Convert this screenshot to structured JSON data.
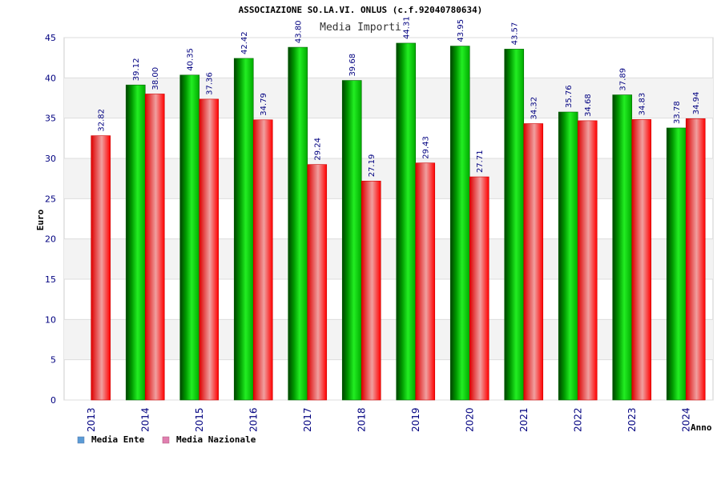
{
  "chart_data": {
    "type": "bar",
    "title": "ASSOCIAZIONE SO.LA.VI. ONLUS (c.f.92040780634)",
    "subtitle": "Media Importi",
    "xlabel": "Anno",
    "ylabel": "Euro",
    "ylim": [
      0,
      45
    ],
    "yticks": [
      0,
      5,
      10,
      15,
      20,
      25,
      30,
      35,
      40,
      45
    ],
    "grid": true,
    "legend_position": "bottom-left",
    "categories": [
      "2013",
      "2014",
      "2015",
      "2016",
      "2017",
      "2018",
      "2019",
      "2020",
      "2021",
      "2022",
      "2023",
      "2024"
    ],
    "value_labels": {
      "ente": [
        "",
        "39.12",
        "40.35",
        "42.42",
        "43.80",
        "39.68",
        "44.31",
        "43.95",
        "43.57",
        "35.76",
        "37.89",
        "33.78"
      ],
      "nazionale": [
        "32.82",
        "38.00",
        "37.36",
        "34.79",
        "29.24",
        "27.19",
        "29.43",
        "27.71",
        "34.32",
        "34.68",
        "34.83",
        "34.94"
      ]
    },
    "series": [
      {
        "name": "Media Ente",
        "color": "#00aa00",
        "legend_color": "#5b9bd5",
        "values": [
          null,
          39.12,
          40.35,
          42.42,
          43.8,
          39.68,
          44.31,
          43.95,
          43.57,
          35.76,
          37.89,
          33.78
        ]
      },
      {
        "name": "Media Nazionale",
        "color": "#ee1111",
        "legend_color": "#e07fb0",
        "values": [
          32.82,
          38.0,
          37.36,
          34.79,
          29.24,
          27.19,
          29.43,
          27.71,
          34.32,
          34.68,
          34.83,
          34.94
        ]
      }
    ]
  }
}
